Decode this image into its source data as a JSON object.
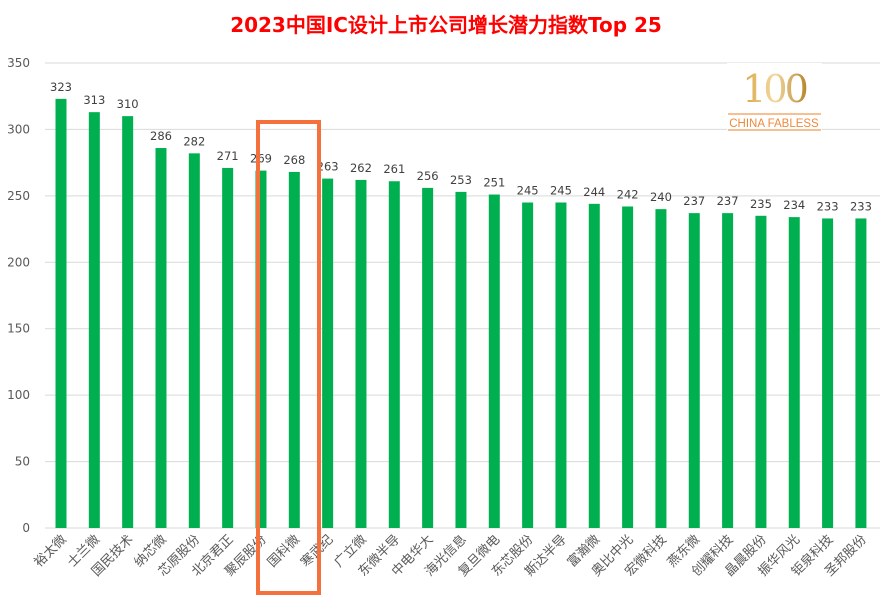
{
  "chart_data": {
    "type": "bar",
    "title": "2023中国IC设计上市公司增长潜力指数Top 25",
    "categories": [
      "裕太微",
      "士兰微",
      "国民技术",
      "纳芯微",
      "芯原股份",
      "北京君正",
      "聚辰股份",
      "国科微",
      "寒武纪",
      "广立微",
      "东微半导",
      "中电华大",
      "海光信息",
      "复旦微电",
      "东芯股份",
      "斯达半导",
      "富瀚微",
      "奥比中光",
      "宏微科技",
      "燕东微",
      "创耀科技",
      "晶晨股份",
      "振华风光",
      "钜泉科技",
      "圣邦股份"
    ],
    "values": [
      323,
      313,
      310,
      286,
      282,
      271,
      269,
      268,
      263,
      262,
      261,
      256,
      253,
      251,
      245,
      245,
      244,
      242,
      240,
      237,
      237,
      235,
      234,
      233,
      233
    ],
    "ylim": [
      0,
      350
    ],
    "yticks": [
      0,
      50,
      100,
      150,
      200,
      250,
      300,
      350
    ],
    "grid": true,
    "bar_color": "#00b050",
    "highlight": {
      "category": "国科微",
      "color": "#f4703c"
    },
    "logo": {
      "text_number": "100",
      "text_sub": "CHINA FABLESS"
    }
  }
}
